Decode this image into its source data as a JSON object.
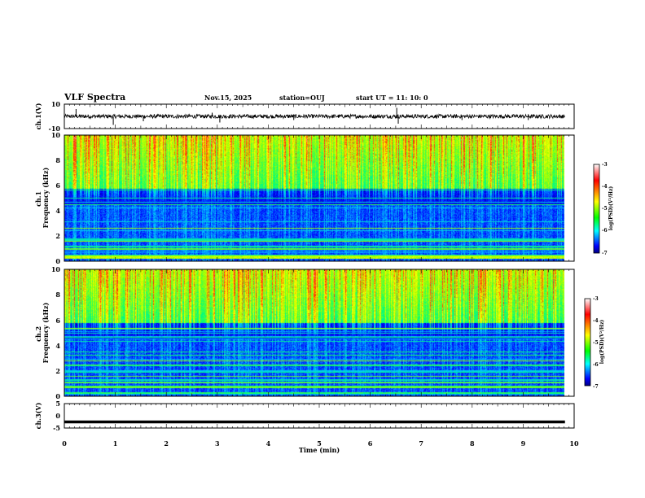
{
  "header": {
    "title": "VLF Spectra",
    "date": "Nov.15, 2025",
    "station": "station=OUJ",
    "start": "start  UT =   11: 10: 0"
  },
  "chart_data": [
    {
      "id": "ch1-waveform",
      "type": "line",
      "ylabel": "ch.1(V)",
      "ylim": [
        -10,
        10
      ],
      "yticks": [
        "10",
        "-10"
      ],
      "xlim": [
        0,
        10
      ],
      "trace_level": 0,
      "spikes": [
        {
          "t": 0.23,
          "v": 6
        },
        {
          "t": 0.96,
          "v": -7
        },
        {
          "t": 1.55,
          "v": -4
        },
        {
          "t": 2.9,
          "v": 3
        },
        {
          "t": 3.05,
          "v": -5
        },
        {
          "t": 4.5,
          "v": -3
        },
        {
          "t": 6.52,
          "v": 7
        },
        {
          "t": 6.55,
          "v": -6
        },
        {
          "t": 7.8,
          "v": -3
        },
        {
          "t": 9.1,
          "v": -3
        }
      ]
    },
    {
      "id": "ch1-spectrogram",
      "type": "heatmap",
      "ylabel": "ch.1\nFrequency  (kHz)",
      "ylabel_lines": [
        "ch.1",
        "Frequency  (kHz)"
      ],
      "ylim": [
        0,
        10
      ],
      "yticks": [
        "0",
        "2",
        "4",
        "6",
        "8",
        "10"
      ],
      "xlim": [
        0,
        10
      ],
      "data_end_min": 9.82,
      "colorbar": {
        "label": "log(PSD)(V²/Hz)",
        "ticks": [
          "-3",
          "-4",
          "-5",
          "-6",
          "-7"
        ],
        "range": [
          -7,
          -3
        ]
      }
    },
    {
      "id": "ch2-spectrogram",
      "type": "heatmap",
      "ylabel": "ch.2\nFrequency  (kHz)",
      "ylabel_lines": [
        "ch.2",
        "Frequency  (kHz)"
      ],
      "ylim": [
        0,
        10
      ],
      "yticks": [
        "0",
        "2",
        "4",
        "6",
        "8",
        "10"
      ],
      "xlim": [
        0,
        10
      ],
      "data_end_min": 9.82,
      "colorbar": {
        "label": "log(PSD)(V²/Hz)",
        "ticks": [
          "-3",
          "-4",
          "-5",
          "-6",
          "-7"
        ],
        "range": [
          -7,
          -3
        ]
      }
    },
    {
      "id": "ch3-waveform",
      "type": "line",
      "ylabel": "ch.3(V)",
      "ylim": [
        -5,
        5
      ],
      "yticks": [
        "5",
        "0",
        "-5"
      ],
      "xlim": [
        0,
        10
      ],
      "trace_level": -2.5,
      "xlabel": "Time  (min)",
      "xticks": [
        "0",
        "1",
        "2",
        "3",
        "4",
        "5",
        "6",
        "7",
        "8",
        "9",
        "10"
      ]
    }
  ]
}
